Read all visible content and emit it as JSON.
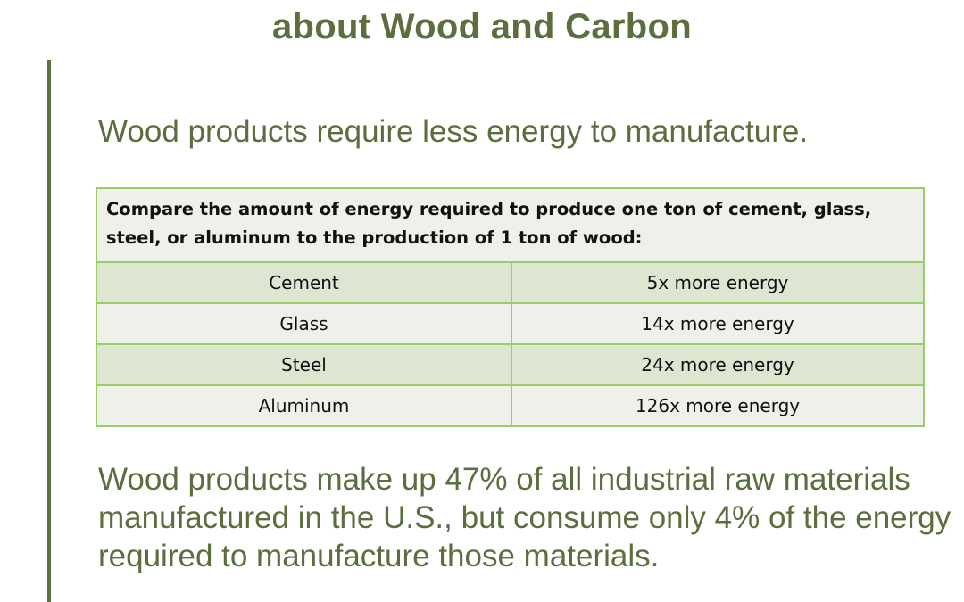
{
  "slide": {
    "title": "about Wood and Carbon",
    "lead": "Wood products require less energy to manufacture.",
    "closing": "Wood products make up 47% of all industrial raw materials manufactured in the U.S., but consume only 4% of the energy required to manufacture those materials."
  },
  "table": {
    "header": "Compare the amount of energy required to produce one ton of cement, glass, steel, or aluminum to the production of 1 ton of wood:",
    "rows": [
      {
        "material": "Cement",
        "energy": "5x more energy"
      },
      {
        "material": "Glass",
        "energy": "14x more energy"
      },
      {
        "material": "Steel",
        "energy": "24x more energy"
      },
      {
        "material": "Aluminum",
        "energy": "126x more energy"
      }
    ]
  },
  "colors": {
    "title_green": "#5b6e3d",
    "table_border": "#9bcc6a",
    "row_shade": "#dce6d1",
    "row_light": "#eef1e9"
  }
}
